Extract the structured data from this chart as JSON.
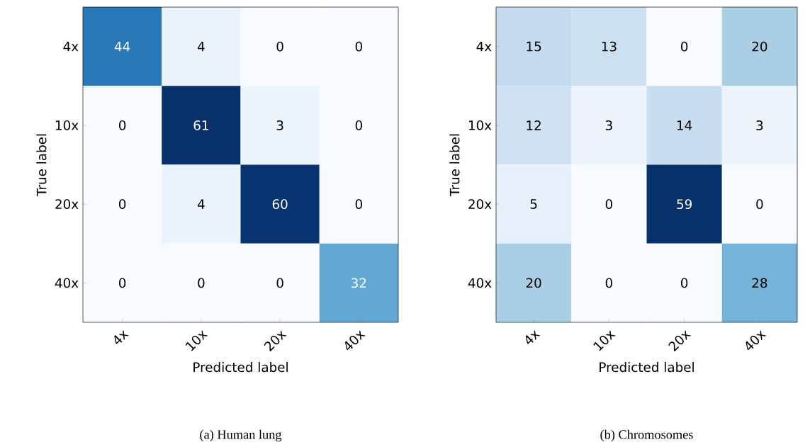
{
  "chart_data": [
    {
      "type": "heatmap",
      "title": "(a) Human lung",
      "xlabel": "Predicted label",
      "ylabel": "True label",
      "categories": [
        "4x",
        "10x",
        "20x",
        "40x"
      ],
      "y_categories": [
        "4x",
        "10x",
        "20x",
        "40x"
      ],
      "cells": [
        [
          44,
          4,
          0,
          0
        ],
        [
          0,
          61,
          3,
          0
        ],
        [
          0,
          4,
          60,
          0
        ],
        [
          0,
          0,
          0,
          32
        ]
      ],
      "data_labels": true
    },
    {
      "type": "heatmap",
      "title": "(b) Chromosomes",
      "xlabel": "Predicted label",
      "ylabel": "True label",
      "categories": [
        "4x",
        "10x",
        "20x",
        "40x"
      ],
      "y_categories": [
        "4x",
        "10x",
        "20x",
        "40x"
      ],
      "cells": [
        [
          15,
          13,
          0,
          20
        ],
        [
          12,
          3,
          14,
          3
        ],
        [
          5,
          0,
          59,
          0
        ],
        [
          20,
          0,
          0,
          28
        ]
      ],
      "data_labels": true
    }
  ]
}
